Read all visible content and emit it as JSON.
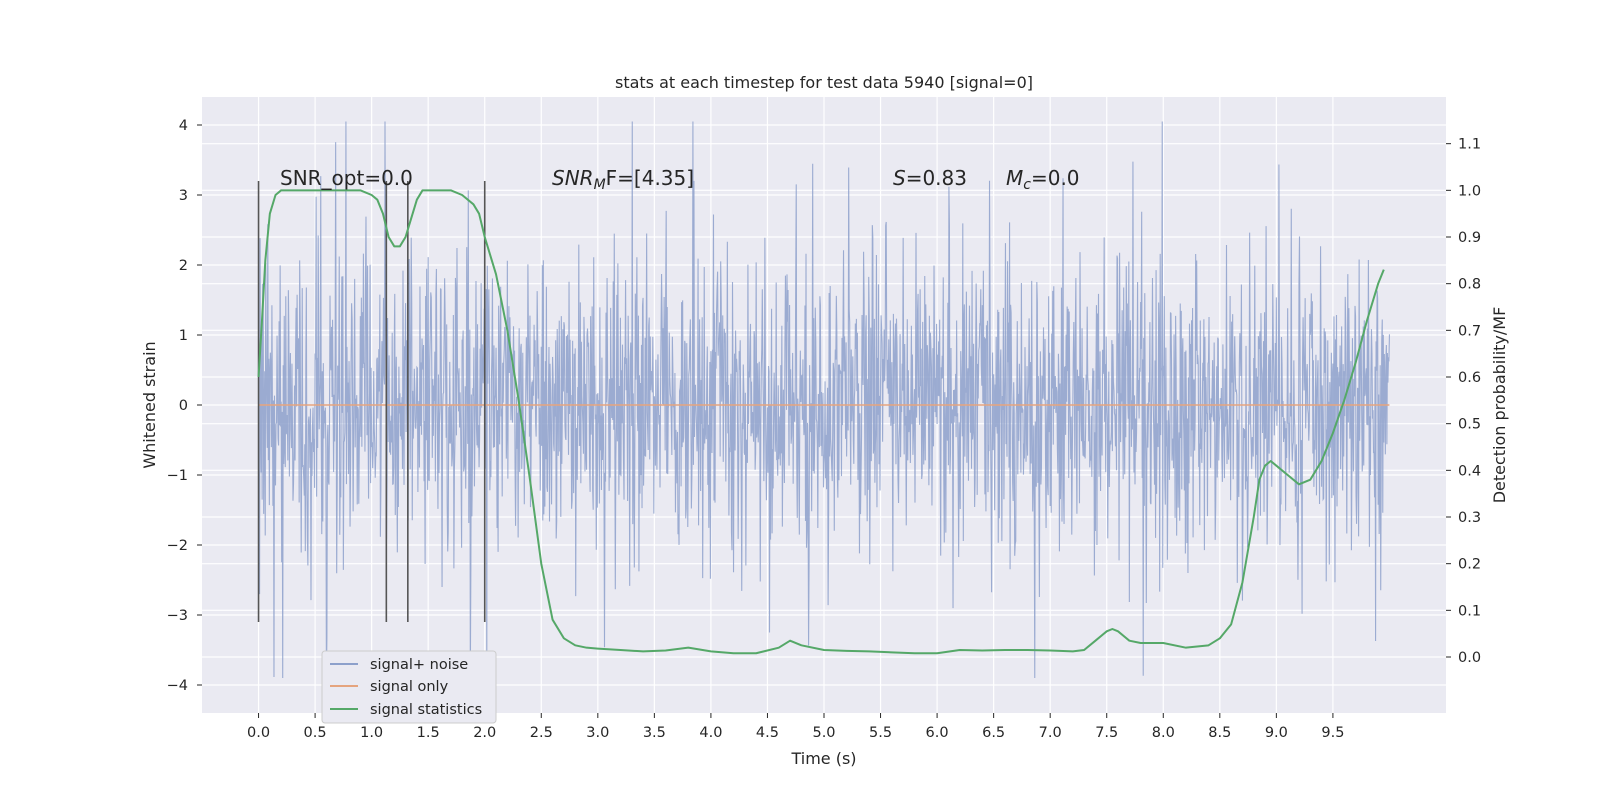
{
  "chart_data": {
    "type": "line",
    "title": "stats at each timestep for test data 5940 [signal=0]",
    "xlabel": "Time (s)",
    "ylabel_left": "Whitened strain",
    "ylabel_right": "Detection probability/MF",
    "xlim": [
      -0.5,
      10.5
    ],
    "ylim_left": [
      -4.4,
      4.4
    ],
    "ylim_right": [
      -0.12,
      1.2
    ],
    "grid": true,
    "legend_placement": "lower-left",
    "x_ticks": [
      "0.0",
      "0.5",
      "1.0",
      "1.5",
      "2.0",
      "2.5",
      "3.0",
      "3.5",
      "4.0",
      "4.5",
      "5.0",
      "5.5",
      "6.0",
      "6.5",
      "7.0",
      "7.5",
      "8.0",
      "8.5",
      "9.0",
      "9.5"
    ],
    "y_ticks_left": [
      "4",
      "3",
      "2",
      "1",
      "0",
      "−1",
      "−2",
      "−3",
      "−4"
    ],
    "y_ticks_right": [
      "1.1",
      "1.0",
      "0.9",
      "0.8",
      "0.7",
      "0.6",
      "0.5",
      "0.4",
      "0.3",
      "0.2",
      "0.1",
      "0.0"
    ],
    "annotations": {
      "snr_opt": "SNR_opt=0.0",
      "snr_mf_label": "SNR",
      "snr_mf_sub": "M",
      "snr_mf_value": "F=[4.35]",
      "s_label": "S",
      "s_value": "=0.83",
      "mc_label": "M",
      "mc_sub": "c",
      "mc_value": "=0.0"
    },
    "vertical_markers_s": [
      0.0,
      1.13,
      1.32,
      2.0
    ],
    "series": [
      {
        "name": "signal+ noise",
        "color": "#8da0cb",
        "note_values": "dense whitened noise trace between approx -3.8 and 4.0, bulk within about -2 to 2"
      },
      {
        "name": "signal only",
        "color": "#e5a47e",
        "x": [
          0.0,
          10.0
        ],
        "y": [
          0.0,
          0.0
        ]
      },
      {
        "name": "signal statistics",
        "color": "#55a868",
        "x": [
          0.0,
          0.03,
          0.06,
          0.1,
          0.15,
          0.2,
          0.3,
          0.4,
          0.5,
          0.6,
          0.7,
          0.8,
          0.9,
          1.0,
          1.05,
          1.1,
          1.15,
          1.2,
          1.25,
          1.3,
          1.35,
          1.4,
          1.45,
          1.5,
          1.55,
          1.6,
          1.7,
          1.8,
          1.9,
          1.95,
          2.0,
          2.05,
          2.1,
          2.2,
          2.3,
          2.4,
          2.5,
          2.6,
          2.7,
          2.8,
          2.9,
          3.0,
          3.2,
          3.4,
          3.6,
          3.8,
          4.0,
          4.2,
          4.4,
          4.6,
          4.7,
          4.8,
          5.0,
          5.2,
          5.4,
          5.6,
          5.8,
          6.0,
          6.2,
          6.4,
          6.6,
          6.8,
          7.0,
          7.2,
          7.3,
          7.4,
          7.5,
          7.55,
          7.6,
          7.7,
          7.8,
          8.0,
          8.2,
          8.4,
          8.5,
          8.6,
          8.7,
          8.8,
          8.85,
          8.9,
          8.95,
          9.0,
          9.1,
          9.2,
          9.3,
          9.4,
          9.5,
          9.6,
          9.7,
          9.8,
          9.9,
          9.95
        ],
        "y": [
          0.6,
          0.72,
          0.85,
          0.95,
          0.99,
          1.0,
          1.0,
          1.0,
          1.0,
          1.0,
          1.0,
          1.0,
          1.0,
          0.99,
          0.98,
          0.95,
          0.9,
          0.88,
          0.88,
          0.9,
          0.94,
          0.98,
          1.0,
          1.0,
          1.0,
          1.0,
          1.0,
          0.99,
          0.97,
          0.95,
          0.9,
          0.86,
          0.82,
          0.7,
          0.55,
          0.38,
          0.2,
          0.08,
          0.04,
          0.025,
          0.02,
          0.018,
          0.015,
          0.012,
          0.014,
          0.02,
          0.012,
          0.008,
          0.008,
          0.02,
          0.035,
          0.025,
          0.015,
          0.013,
          0.012,
          0.01,
          0.008,
          0.008,
          0.015,
          0.014,
          0.015,
          0.015,
          0.014,
          0.012,
          0.015,
          0.035,
          0.055,
          0.06,
          0.055,
          0.035,
          0.03,
          0.03,
          0.02,
          0.025,
          0.04,
          0.07,
          0.16,
          0.3,
          0.38,
          0.41,
          0.42,
          0.41,
          0.39,
          0.37,
          0.38,
          0.42,
          0.48,
          0.55,
          0.63,
          0.72,
          0.8,
          0.83
        ]
      }
    ]
  }
}
